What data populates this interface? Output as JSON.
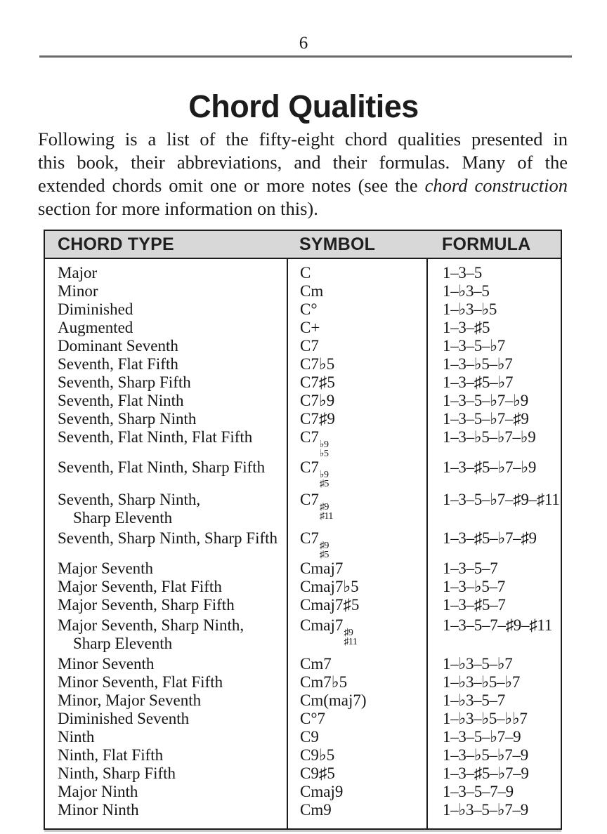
{
  "page": {
    "number": "6"
  },
  "title": "Chord Qualities",
  "intro": {
    "lines": [
      [
        {
          "t": "Following is a list of the fifty-eight chord qualities presented in"
        }
      ],
      [
        {
          "t": "this book, their abbreviations, and their formulas. Many of the"
        }
      ],
      [
        {
          "t": "extended chords omit one or more notes (see the "
        },
        {
          "t": "chord construction",
          "i": true
        }
      ],
      [
        {
          "t": "section for more information on this)."
        }
      ]
    ]
  },
  "table": {
    "headers": [
      "CHORD TYPE",
      "SYMBOL",
      "FORMULA"
    ],
    "rows": [
      {
        "type": [
          "Major"
        ],
        "symbol": "C",
        "formula": "1–3–5"
      },
      {
        "type": [
          "Minor"
        ],
        "symbol": "Cm",
        "formula": "1–♭3–5"
      },
      {
        "type": [
          "Diminished"
        ],
        "symbol": "C°",
        "formula": "1–♭3–♭5"
      },
      {
        "type": [
          "Augmented"
        ],
        "symbol": "C+",
        "formula": "1–3–♯5"
      },
      {
        "type": [
          "Dominant Seventh"
        ],
        "symbol": "C7",
        "formula": "1–3–5–♭7"
      },
      {
        "type": [
          "Seventh, Flat Fifth"
        ],
        "symbol": "C7♭5",
        "formula": "1–3–♭5–♭7"
      },
      {
        "type": [
          "Seventh, Sharp Fifth"
        ],
        "symbol": "C7♯5",
        "formula": "1–3–♯5–♭7"
      },
      {
        "type": [
          "Seventh, Flat Ninth"
        ],
        "symbol": "C7♭9",
        "formula": "1–3–5–♭7–♭9"
      },
      {
        "type": [
          "Seventh, Sharp Ninth"
        ],
        "symbol": "C7♯9",
        "formula": "1–3–5–♭7–♯9"
      },
      {
        "type": [
          "Seventh, Flat Ninth, Flat Fifth"
        ],
        "symbol": "C7",
        "stack": [
          "♭9",
          "♭5"
        ],
        "formula": "1–3–♭5–♭7–♭9"
      },
      {
        "type": [
          "Seventh, Flat Ninth, Sharp Fifth"
        ],
        "symbol": "C7",
        "stack": [
          "♭9",
          "♯5"
        ],
        "formula": "1–3–♯5–♭7–♭9"
      },
      {
        "type": [
          "Seventh, Sharp Ninth,",
          "Sharp Eleventh"
        ],
        "symbol": "C7",
        "stack": [
          "♯9",
          "♯11"
        ],
        "formula": "1–3–5–♭7–♯9–♯11"
      },
      {
        "type": [
          "Seventh, Sharp Ninth, Sharp Fifth"
        ],
        "symbol": "C7",
        "stack": [
          "♯9",
          "♯5"
        ],
        "formula": "1–3–♯5–♭7–♯9"
      },
      {
        "type": [
          "Major Seventh"
        ],
        "symbol": "Cmaj7",
        "formula": "1–3–5–7"
      },
      {
        "type": [
          "Major Seventh, Flat Fifth"
        ],
        "symbol": "Cmaj7♭5",
        "formula": "1–3–♭5–7"
      },
      {
        "type": [
          "Major Seventh, Sharp Fifth"
        ],
        "symbol": "Cmaj7♯5",
        "formula": "1–3–♯5–7"
      },
      {
        "type": [
          "Major Seventh, Sharp Ninth,",
          "Sharp Eleventh"
        ],
        "symbol": "Cmaj7",
        "stack": [
          "♯9",
          "♯11"
        ],
        "formula": "1–3–5–7–♯9–♯11"
      },
      {
        "type": [
          "Minor Seventh"
        ],
        "symbol": "Cm7",
        "formula": "1–♭3–5–♭7"
      },
      {
        "type": [
          "Minor Seventh, Flat Fifth"
        ],
        "symbol": "Cm7♭5",
        "formula": "1–♭3–♭5–♭7"
      },
      {
        "type": [
          "Minor, Major Seventh"
        ],
        "symbol": "Cm(maj7)",
        "formula": "1–♭3–5–7"
      },
      {
        "type": [
          "Diminished Seventh"
        ],
        "symbol": "C°7",
        "formula": "1–♭3–♭5–♭♭7"
      },
      {
        "type": [
          "Ninth"
        ],
        "symbol": "C9",
        "formula": "1–3–5–♭7–9"
      },
      {
        "type": [
          "Ninth, Flat Fifth"
        ],
        "symbol": "C9♭5",
        "formula": "1–3–♭5–♭7–9"
      },
      {
        "type": [
          "Ninth, Sharp Fifth"
        ],
        "symbol": "C9♯5",
        "formula": "1–3–♯5–♭7–9"
      },
      {
        "type": [
          "Major Ninth"
        ],
        "symbol": "Cmaj9",
        "formula": "1–3–5–7–9"
      },
      {
        "type": [
          "Minor Ninth"
        ],
        "symbol": "Cm9",
        "formula": "1–♭3–5–♭7–9"
      }
    ]
  }
}
